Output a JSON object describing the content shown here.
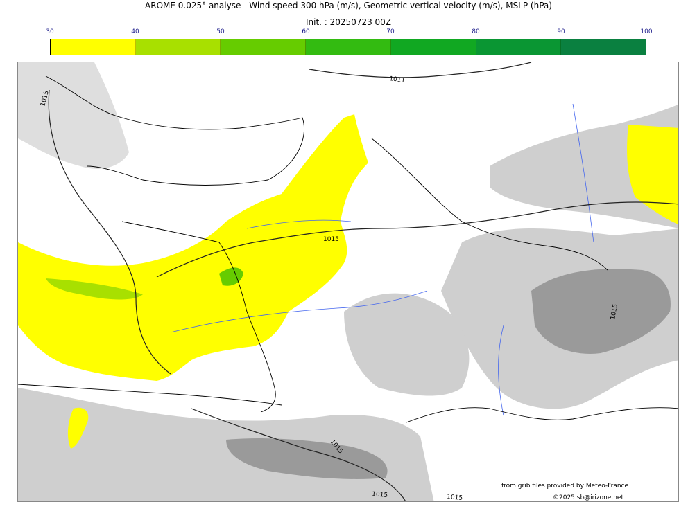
{
  "header": {
    "title": "AROME 0.025° analyse - Wind speed 300 hPa (m/s), Geometric vertical velocity (m/s), MSLP (hPa)",
    "init": "Init. : 20250723 00Z"
  },
  "colorbar": {
    "ticks": [
      "30",
      "40",
      "50",
      "60",
      "70",
      "80",
      "90",
      "100"
    ],
    "colors": [
      "#ffff00",
      "#a8e000",
      "#66cc00",
      "#33bb11",
      "#11a822",
      "#0a9633",
      "#0a8040",
      "#0a6b45"
    ]
  },
  "isobars": {
    "label_1011": "1011",
    "label_1015": "1015"
  },
  "credits": {
    "source": "from grib files provided by Meteo-France",
    "copyright": "©2025 sb@irizone.net"
  }
}
